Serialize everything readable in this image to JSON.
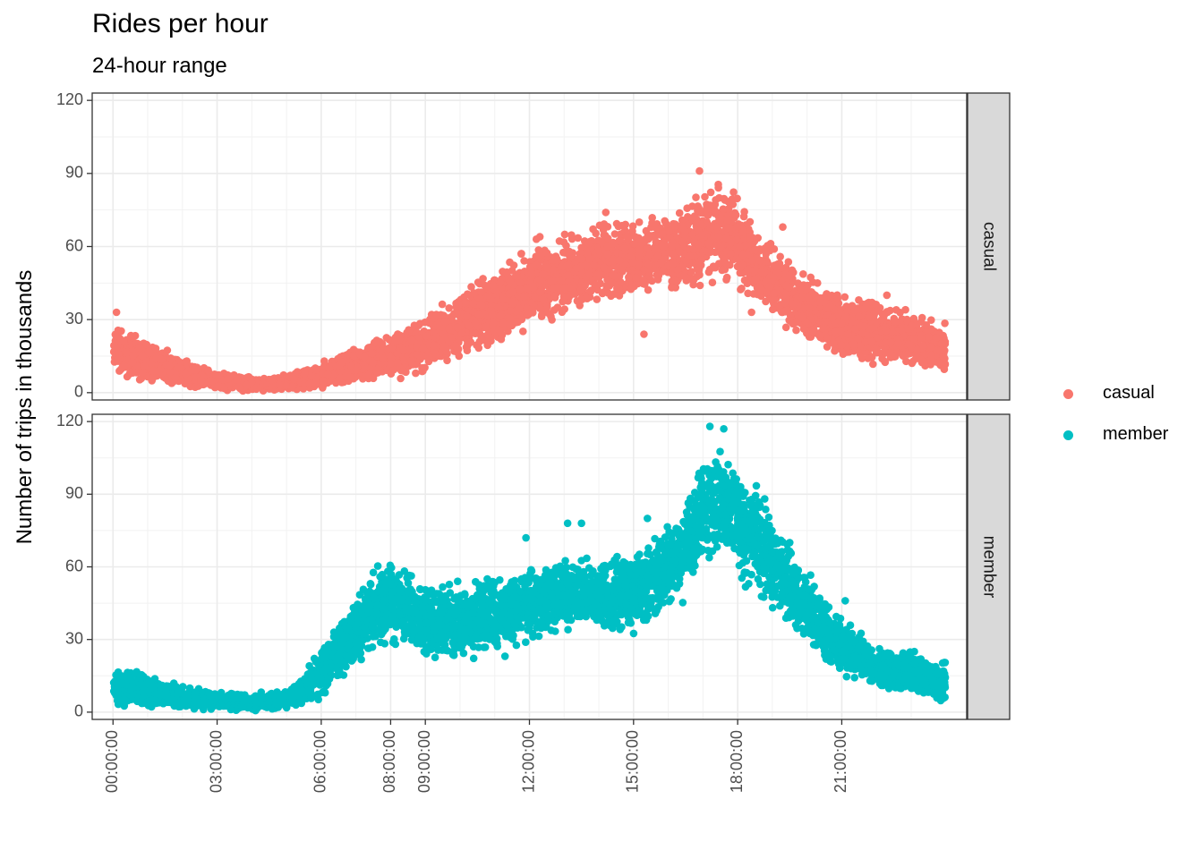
{
  "chart_data": {
    "type": "scatter",
    "title": "Rides per hour",
    "subtitle": "24-hour range",
    "ylabel": "Number of trips in thousands",
    "xlabel": "",
    "x_unit": "hours",
    "xlim": [
      -0.6,
      24.6
    ],
    "x_ticks": [
      0,
      3,
      6,
      8,
      9,
      12,
      15,
      18,
      21
    ],
    "x_tick_labels": [
      "00:00:00",
      "03:00:00",
      "06:00:00",
      "08:00:00",
      "09:00:00",
      "12:00:00",
      "15:00:00",
      "18:00:00",
      "21:00:00"
    ],
    "ylim": [
      -3,
      123
    ],
    "y_ticks": [
      0,
      30,
      60,
      90,
      120
    ],
    "y_tick_labels": [
      "0",
      "30",
      "60",
      "90",
      "120"
    ],
    "grid": true,
    "facets": [
      "casual",
      "member"
    ],
    "legend": {
      "position": "right",
      "items": [
        "casual",
        "member"
      ]
    },
    "series": [
      {
        "name": "casual",
        "color": "#F8766D",
        "band": {
          "x": [
            0,
            0.5,
            1,
            2,
            3,
            4,
            5,
            6,
            7,
            8,
            9,
            10,
            11,
            12,
            13,
            14,
            15,
            16,
            17,
            17.5,
            18,
            19,
            20,
            21,
            22,
            23,
            24
          ],
          "low": [
            6,
            4,
            3,
            1,
            0.5,
            0.3,
            0.5,
            1,
            2,
            4,
            7,
            12,
            18,
            24,
            30,
            34,
            36,
            38,
            40,
            43,
            38,
            28,
            18,
            12,
            9,
            7,
            6
          ],
          "high": [
            30,
            26,
            23,
            15,
            9,
            7,
            8,
            13,
            20,
            27,
            33,
            43,
            53,
            62,
            67,
            72,
            75,
            78,
            86,
            90,
            84,
            62,
            50,
            42,
            40,
            36,
            30
          ]
        },
        "outliers": [
          [
            0.1,
            33
          ],
          [
            12.2,
            63
          ],
          [
            12.3,
            64
          ],
          [
            14.2,
            74
          ],
          [
            15.3,
            24
          ],
          [
            18.4,
            33
          ],
          [
            16.9,
            91
          ],
          [
            19.3,
            68
          ],
          [
            20.3,
            45
          ],
          [
            22.3,
            40
          ]
        ]
      },
      {
        "name": "member",
        "color": "#00BFC4",
        "band": {
          "x": [
            0,
            0.5,
            1,
            2,
            3,
            4,
            5,
            5.5,
            6,
            7,
            7.5,
            8,
            8.5,
            9,
            10,
            11,
            12,
            13,
            14,
            15,
            16,
            16.5,
            17,
            17.5,
            18,
            19,
            20,
            21,
            22,
            23,
            24
          ],
          "low": [
            2,
            1.5,
            1,
            0.5,
            0.3,
            0.3,
            0.5,
            1,
            4,
            14,
            22,
            25,
            24,
            18,
            18,
            20,
            27,
            32,
            28,
            30,
            38,
            45,
            55,
            60,
            52,
            40,
            25,
            14,
            7,
            5,
            2
          ],
          "high": [
            18,
            20,
            16,
            12,
            9,
            8,
            10,
            16,
            30,
            50,
            62,
            64,
            62,
            56,
            56,
            60,
            64,
            66,
            67,
            70,
            80,
            90,
            110,
            115,
            105,
            85,
            60,
            40,
            30,
            27,
            22
          ]
        },
        "outliers": [
          [
            13.1,
            78
          ],
          [
            13.5,
            78
          ],
          [
            11.9,
            72
          ],
          [
            15.4,
            80
          ],
          [
            17.2,
            118
          ],
          [
            17.6,
            117
          ],
          [
            19.5,
            70
          ],
          [
            21.1,
            46
          ]
        ]
      }
    ]
  }
}
